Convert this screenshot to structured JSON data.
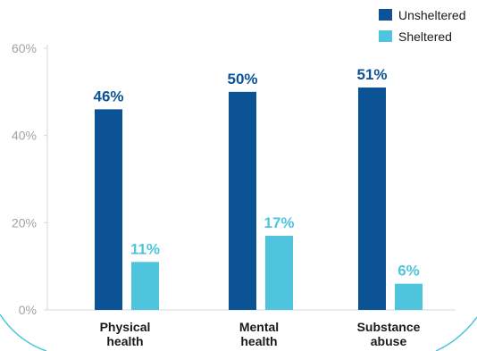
{
  "chart_data": {
    "type": "bar",
    "categories": [
      [
        "Physical",
        "health"
      ],
      [
        "Mental",
        "health"
      ],
      [
        "Substance",
        "abuse"
      ]
    ],
    "series": [
      {
        "name": "Unsheltered",
        "color": "#0b5395",
        "values": [
          46,
          50,
          51
        ],
        "labels": [
          "46%",
          "50%",
          "51%"
        ]
      },
      {
        "name": "Sheltered",
        "color": "#4ec5dc",
        "values": [
          11,
          17,
          6
        ],
        "labels": [
          "11%",
          "17%",
          "6%"
        ]
      }
    ],
    "ylim": [
      0,
      60
    ],
    "yticks": [
      0,
      20,
      40,
      60
    ],
    "ytick_labels": [
      "0%",
      "20%",
      "40%",
      "60%"
    ],
    "legend_placement": "top-right",
    "grid": false,
    "colors": {
      "axis": "#cfd8e0",
      "tick_text": "#9ea3a8",
      "frame_arc": "#4ec5dc"
    }
  }
}
